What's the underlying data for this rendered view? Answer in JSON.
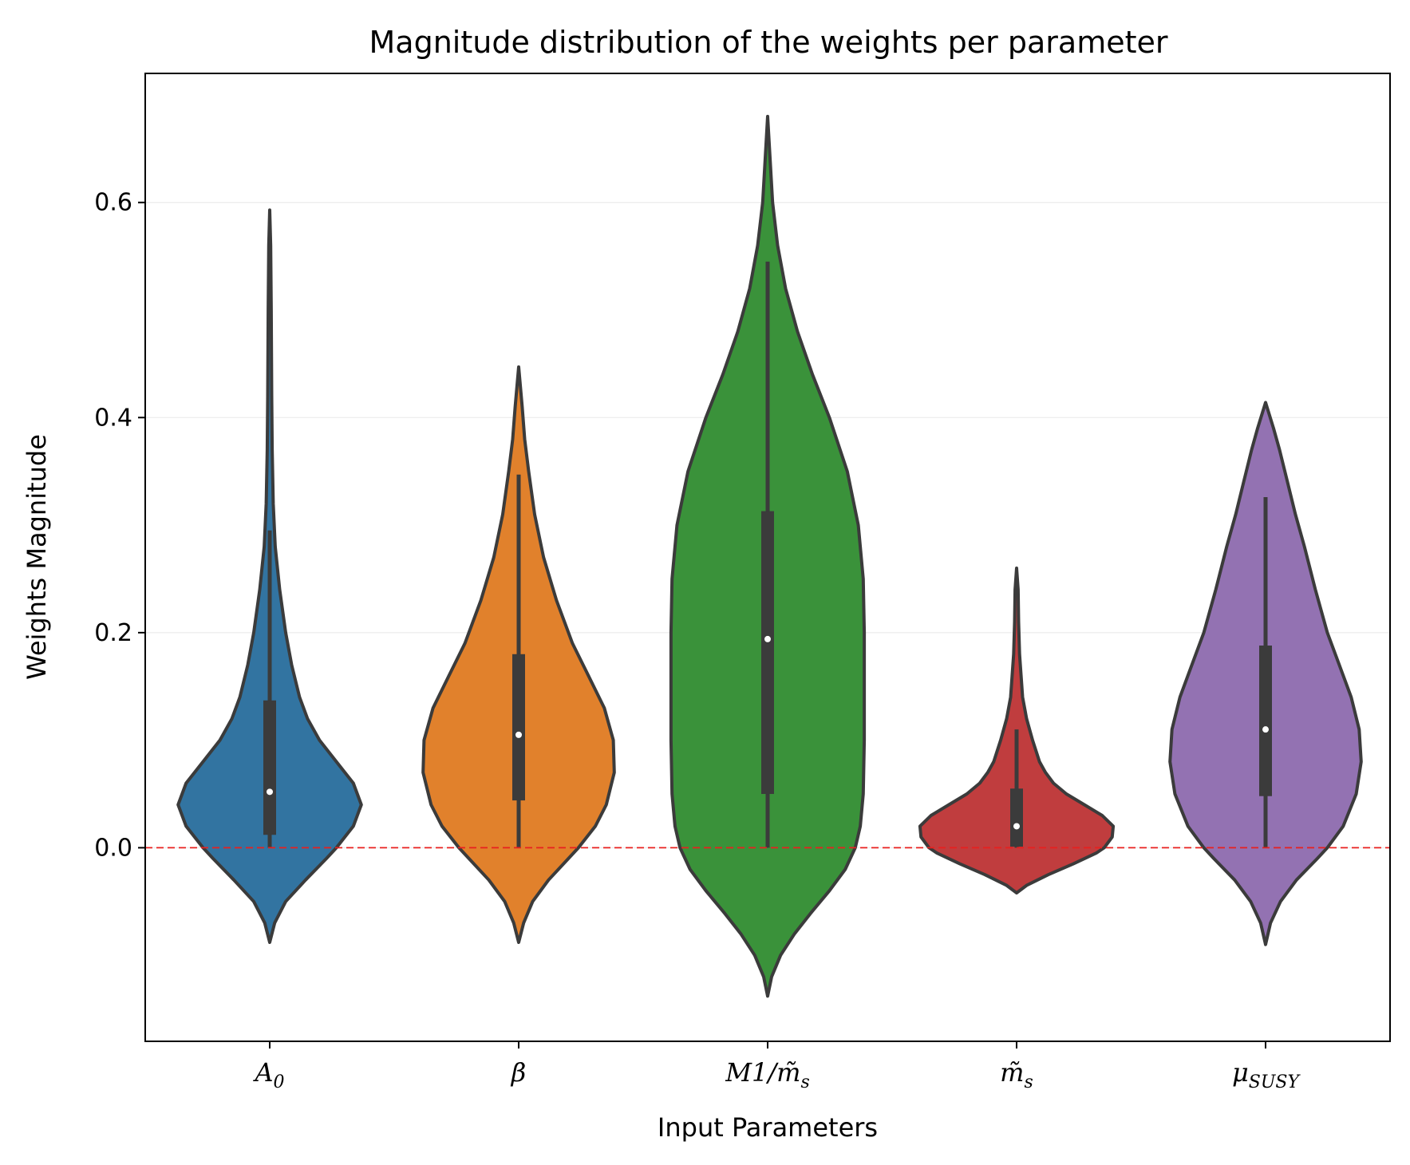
{
  "chart_data": {
    "type": "violin",
    "title": "Magnitude distribution of the weights per parameter",
    "xlabel": "Input Parameters",
    "ylabel": "Weights Magnitude",
    "ylim": [
      -0.18,
      0.72
    ],
    "yticks": [
      0.0,
      0.2,
      0.4,
      0.6
    ],
    "ytick_labels": [
      "0.0",
      "0.2",
      "0.4",
      "0.6"
    ],
    "grid": "horizontal, faint",
    "reference_line": {
      "y": 0.0,
      "style": "dashed",
      "color": "#e8201f"
    },
    "outline_color": "#3b3b3b",
    "categories": [
      {
        "label": "A",
        "sub": "0"
      },
      {
        "label": "β",
        "sub": ""
      },
      {
        "label": "M1/m̃",
        "sub": "s"
      },
      {
        "label": "m̃",
        "sub": "s"
      },
      {
        "label": "μ",
        "sub": "SUSY"
      }
    ],
    "series": [
      {
        "color": "#3274a1",
        "min": 0.0,
        "q1": 0.012,
        "median": 0.052,
        "q3": 0.137,
        "max": 0.295,
        "kde_range": [
          -0.088,
          0.593
        ],
        "profile": [
          [
            -0.088,
            0.0
          ],
          [
            -0.07,
            0.05
          ],
          [
            -0.05,
            0.16
          ],
          [
            -0.03,
            0.36
          ],
          [
            -0.01,
            0.57
          ],
          [
            0.0,
            0.67
          ],
          [
            0.02,
            0.84
          ],
          [
            0.04,
            0.92
          ],
          [
            0.06,
            0.84
          ],
          [
            0.08,
            0.67
          ],
          [
            0.1,
            0.5
          ],
          [
            0.12,
            0.38
          ],
          [
            0.14,
            0.3
          ],
          [
            0.17,
            0.22
          ],
          [
            0.2,
            0.16
          ],
          [
            0.24,
            0.1
          ],
          [
            0.28,
            0.055
          ],
          [
            0.32,
            0.035
          ],
          [
            0.37,
            0.025
          ],
          [
            0.42,
            0.02
          ],
          [
            0.5,
            0.015
          ],
          [
            0.56,
            0.01
          ],
          [
            0.593,
            0.0
          ]
        ]
      },
      {
        "color": "#e1812c",
        "min": 0.0,
        "q1": 0.044,
        "median": 0.105,
        "q3": 0.18,
        "max": 0.347,
        "kde_range": [
          -0.088,
          0.447
        ],
        "profile": [
          [
            -0.088,
            0.0
          ],
          [
            -0.07,
            0.05
          ],
          [
            -0.05,
            0.14
          ],
          [
            -0.03,
            0.3
          ],
          [
            -0.01,
            0.5
          ],
          [
            0.0,
            0.6
          ],
          [
            0.02,
            0.77
          ],
          [
            0.04,
            0.88
          ],
          [
            0.07,
            0.96
          ],
          [
            0.1,
            0.95
          ],
          [
            0.13,
            0.86
          ],
          [
            0.16,
            0.7
          ],
          [
            0.19,
            0.54
          ],
          [
            0.23,
            0.38
          ],
          [
            0.27,
            0.25
          ],
          [
            0.31,
            0.16
          ],
          [
            0.35,
            0.1
          ],
          [
            0.38,
            0.06
          ],
          [
            0.41,
            0.035
          ],
          [
            0.447,
            0.0
          ]
        ]
      },
      {
        "color": "#3a923a",
        "min": 0.0,
        "q1": 0.05,
        "median": 0.194,
        "q3": 0.313,
        "max": 0.545,
        "kde_range": [
          -0.138,
          0.68
        ],
        "profile": [
          [
            -0.138,
            0.0
          ],
          [
            -0.12,
            0.04
          ],
          [
            -0.1,
            0.13
          ],
          [
            -0.08,
            0.27
          ],
          [
            -0.06,
            0.44
          ],
          [
            -0.04,
            0.62
          ],
          [
            -0.02,
            0.78
          ],
          [
            0.0,
            0.88
          ],
          [
            0.02,
            0.93
          ],
          [
            0.05,
            0.96
          ],
          [
            0.1,
            0.97
          ],
          [
            0.15,
            0.97
          ],
          [
            0.2,
            0.97
          ],
          [
            0.25,
            0.96
          ],
          [
            0.3,
            0.91
          ],
          [
            0.35,
            0.8
          ],
          [
            0.4,
            0.62
          ],
          [
            0.44,
            0.45
          ],
          [
            0.48,
            0.3
          ],
          [
            0.52,
            0.18
          ],
          [
            0.56,
            0.1
          ],
          [
            0.6,
            0.05
          ],
          [
            0.64,
            0.025
          ],
          [
            0.68,
            0.0
          ]
        ]
      },
      {
        "color": "#c03d3e",
        "min": 0.0,
        "q1": 0.001,
        "median": 0.02,
        "q3": 0.055,
        "max": 0.11,
        "kde_range": [
          -0.042,
          0.26
        ],
        "profile": [
          [
            -0.042,
            0.0
          ],
          [
            -0.035,
            0.1
          ],
          [
            -0.025,
            0.32
          ],
          [
            -0.015,
            0.57
          ],
          [
            -0.005,
            0.8
          ],
          [
            0.0,
            0.88
          ],
          [
            0.01,
            0.96
          ],
          [
            0.02,
            0.97
          ],
          [
            0.03,
            0.86
          ],
          [
            0.04,
            0.68
          ],
          [
            0.05,
            0.5
          ],
          [
            0.06,
            0.37
          ],
          [
            0.07,
            0.29
          ],
          [
            0.08,
            0.23
          ],
          [
            0.1,
            0.16
          ],
          [
            0.12,
            0.1
          ],
          [
            0.14,
            0.06
          ],
          [
            0.16,
            0.045
          ],
          [
            0.18,
            0.03
          ],
          [
            0.21,
            0.02
          ],
          [
            0.24,
            0.015
          ],
          [
            0.26,
            0.0
          ]
        ]
      },
      {
        "color": "#9372b2",
        "min": 0.0,
        "q1": 0.048,
        "median": 0.11,
        "q3": 0.188,
        "max": 0.326,
        "kde_range": [
          -0.09,
          0.414
        ],
        "profile": [
          [
            -0.09,
            0.0
          ],
          [
            -0.07,
            0.05
          ],
          [
            -0.05,
            0.15
          ],
          [
            -0.03,
            0.31
          ],
          [
            -0.01,
            0.52
          ],
          [
            0.0,
            0.62
          ],
          [
            0.02,
            0.78
          ],
          [
            0.05,
            0.91
          ],
          [
            0.08,
            0.96
          ],
          [
            0.11,
            0.94
          ],
          [
            0.14,
            0.86
          ],
          [
            0.17,
            0.74
          ],
          [
            0.2,
            0.62
          ],
          [
            0.24,
            0.5
          ],
          [
            0.28,
            0.39
          ],
          [
            0.31,
            0.3
          ],
          [
            0.34,
            0.22
          ],
          [
            0.37,
            0.14
          ],
          [
            0.39,
            0.08
          ],
          [
            0.414,
            0.0
          ]
        ]
      }
    ]
  }
}
